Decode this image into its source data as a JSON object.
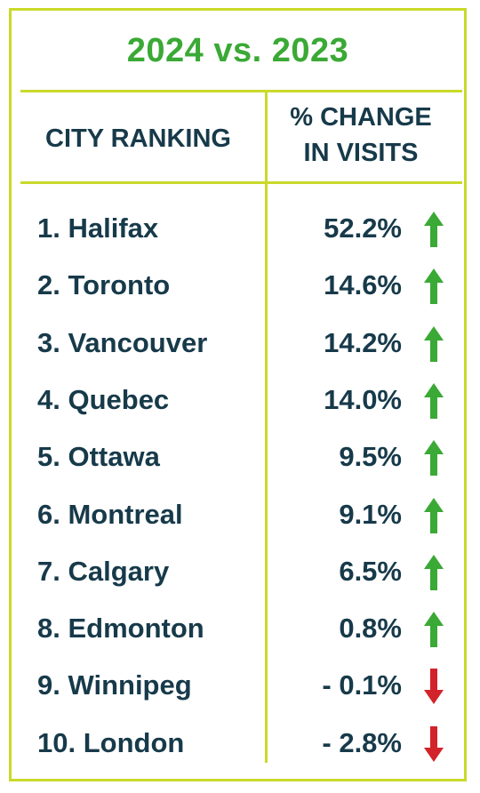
{
  "title": "2024 vs. 2023",
  "headers": {
    "city": "CITY RANKING",
    "change_line1": "% CHANGE",
    "change_line2": "IN VISITS"
  },
  "colors": {
    "up": "#3aa935",
    "down": "#d2232a",
    "border": "#c9da2a",
    "text": "#173a4a"
  },
  "rows": [
    {
      "city": "1. Halifax",
      "change": "52.2%",
      "trend": "up-arrow-icon"
    },
    {
      "city": "2. Toronto",
      "change": "14.6%",
      "trend": "up-arrow-icon"
    },
    {
      "city": "3. Vancouver",
      "change": "14.2%",
      "trend": "up-arrow-icon"
    },
    {
      "city": "4. Quebec",
      "change": "14.0%",
      "trend": "up-arrow-icon"
    },
    {
      "city": "5. Ottawa",
      "change": "9.5%",
      "trend": "up-arrow-icon"
    },
    {
      "city": "6. Montreal",
      "change": "9.1%",
      "trend": "up-arrow-icon"
    },
    {
      "city": "7. Calgary",
      "change": "6.5%",
      "trend": "up-arrow-icon"
    },
    {
      "city": "8. Edmonton",
      "change": "0.8%",
      "trend": "up-arrow-icon"
    },
    {
      "city": "9. Winnipeg",
      "change": "- 0.1%",
      "trend": "down-arrow-icon"
    },
    {
      "city": "10. London",
      "change": "- 2.8%",
      "trend": "down-arrow-icon"
    }
  ]
}
